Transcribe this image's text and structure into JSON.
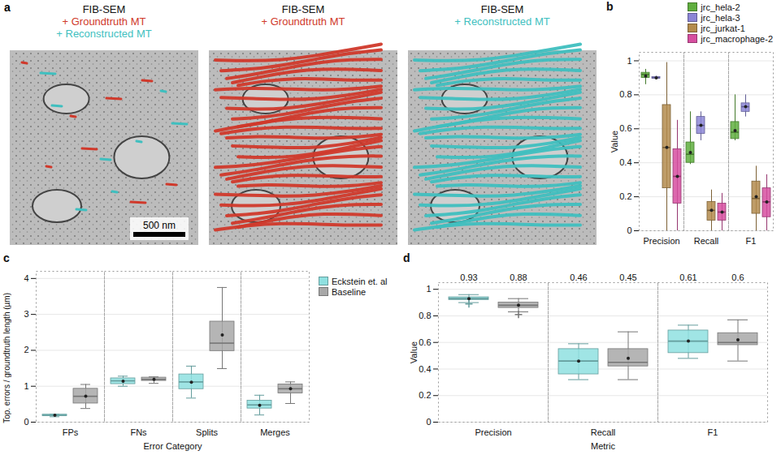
{
  "image_panel": {
    "panel": "a",
    "type": "image",
    "scale_bar": "500 nm",
    "views": [
      {
        "title": [
          {
            "text": "FIB-SEM",
            "color": "#111111"
          },
          {
            "text": "+ Groundtruth MT",
            "color": "#d0392b"
          },
          {
            "text": "+ Reconstructed MT",
            "color": "#3fbfbf"
          }
        ]
      },
      {
        "title": [
          {
            "text": "FIB-SEM",
            "color": "#111111"
          },
          {
            "text": "+ Groundtruth MT",
            "color": "#d0392b"
          }
        ]
      },
      {
        "title": [
          {
            "text": "FIB-SEM",
            "color": "#111111"
          },
          {
            "text": "+ Reconstructed MT",
            "color": "#3fbfbf"
          }
        ]
      }
    ]
  },
  "chart_data": [
    {
      "panel": "b",
      "type": "box",
      "ylabel": "Value",
      "categories": [
        "Precision",
        "Recall",
        "F1"
      ],
      "ylim": [
        0,
        1.05
      ],
      "yticks": [
        0,
        0.2,
        0.4,
        0.6,
        0.8,
        1
      ],
      "grid": true,
      "legend": "top-right",
      "series": [
        {
          "name": "jrc_hela-2",
          "color": "#5fae3e",
          "min": [
            0.86,
            0.39,
            0.53
          ],
          "q1": [
            0.9,
            0.4,
            0.54
          ],
          "median": [
            0.92,
            0.45,
            0.58
          ],
          "q3": [
            0.93,
            0.52,
            0.64
          ],
          "max": [
            0.95,
            0.7,
            0.8
          ],
          "mean": [
            0.91,
            0.46,
            0.59
          ]
        },
        {
          "name": "jrc_hela-3",
          "color": "#8c86d6",
          "min": [
            0.89,
            0.53,
            0.67
          ],
          "q1": [
            0.895,
            0.57,
            0.7
          ],
          "median": [
            0.9,
            0.62,
            0.73
          ],
          "q3": [
            0.905,
            0.67,
            0.75
          ],
          "max": [
            0.91,
            0.7,
            0.8
          ],
          "mean": [
            0.9,
            0.62,
            0.73
          ]
        },
        {
          "name": "jrc_jurkat-1",
          "color": "#b38b4d",
          "min": [
            0,
            0,
            0
          ],
          "q1": [
            0.25,
            0.06,
            0.1
          ],
          "median": [
            0.49,
            0.12,
            0.19
          ],
          "q3": [
            0.74,
            0.17,
            0.29
          ],
          "max": [
            0.99,
            0.24,
            0.38
          ],
          "mean": [
            0.49,
            0.12,
            0.2
          ]
        },
        {
          "name": "jrc_macrophage-2",
          "color": "#d64fa0",
          "min": [
            0,
            0,
            0
          ],
          "q1": [
            0.16,
            0.06,
            0.08
          ],
          "median": [
            0.32,
            0.11,
            0.17
          ],
          "q3": [
            0.48,
            0.16,
            0.25
          ],
          "max": [
            0.65,
            0.22,
            0.33
          ],
          "mean": [
            0.32,
            0.11,
            0.17
          ]
        }
      ]
    },
    {
      "panel": "c",
      "type": "box",
      "xlabel": "Error Category",
      "ylabel": "Top. errors / groundtruth length (µm)",
      "categories": [
        "FPs",
        "FNs",
        "Splits",
        "Merges"
      ],
      "ylim": [
        0,
        4.2
      ],
      "yticks": [
        0,
        1,
        2,
        3,
        4
      ],
      "grid": true,
      "legend": "right",
      "series": [
        {
          "name": "Eckstein et. al",
          "color": "#8fe0e0",
          "min": [
            0.15,
            1.0,
            0.67,
            0.2
          ],
          "q1": [
            0.17,
            1.06,
            0.92,
            0.38
          ],
          "median": [
            0.19,
            1.15,
            1.12,
            0.48
          ],
          "q3": [
            0.21,
            1.22,
            1.33,
            0.6
          ],
          "max": [
            0.22,
            1.28,
            1.56,
            0.75
          ],
          "mean": [
            0.19,
            1.14,
            1.11,
            0.47
          ]
        },
        {
          "name": "Baseline",
          "color": "#a8a8a8",
          "min": [
            0.38,
            1.08,
            1.49,
            0.52
          ],
          "q1": [
            0.52,
            1.15,
            1.98,
            0.8
          ],
          "median": [
            0.72,
            1.19,
            2.2,
            0.93
          ],
          "q3": [
            0.93,
            1.24,
            2.8,
            1.05
          ],
          "max": [
            1.05,
            1.26,
            3.75,
            1.12
          ],
          "mean": [
            0.72,
            1.19,
            2.43,
            0.93
          ]
        }
      ]
    },
    {
      "panel": "d",
      "type": "box",
      "xlabel": "Metric",
      "ylabel": "Value",
      "categories": [
        "Precision",
        "Recall",
        "F1"
      ],
      "ylim": [
        0,
        1.05
      ],
      "yticks": [
        0,
        0.2,
        0.4,
        0.6,
        0.8,
        1
      ],
      "grid": true,
      "data_labels": true,
      "series": [
        {
          "name": "Eckstein et. al",
          "color": "#8fe0e0",
          "min": [
            0.9,
            0.32,
            0.48
          ],
          "q1": [
            0.92,
            0.36,
            0.52
          ],
          "median": [
            0.93,
            0.46,
            0.61
          ],
          "q3": [
            0.94,
            0.55,
            0.69
          ],
          "max": [
            0.96,
            0.59,
            0.73
          ],
          "mean": [
            0.93,
            0.46,
            0.61
          ],
          "outliers": [
            [
              0.89
            ],
            [],
            []
          ]
        },
        {
          "name": "Baseline",
          "color": "#a8a8a8",
          "min": [
            0.83,
            0.32,
            0.46
          ],
          "q1": [
            0.86,
            0.42,
            0.58
          ],
          "median": [
            0.88,
            0.45,
            0.6
          ],
          "q3": [
            0.9,
            0.55,
            0.67
          ],
          "max": [
            0.93,
            0.68,
            0.77
          ],
          "mean": [
            0.88,
            0.48,
            0.62
          ],
          "outliers": [
            [
              0.81
            ],
            [],
            []
          ]
        }
      ]
    }
  ]
}
